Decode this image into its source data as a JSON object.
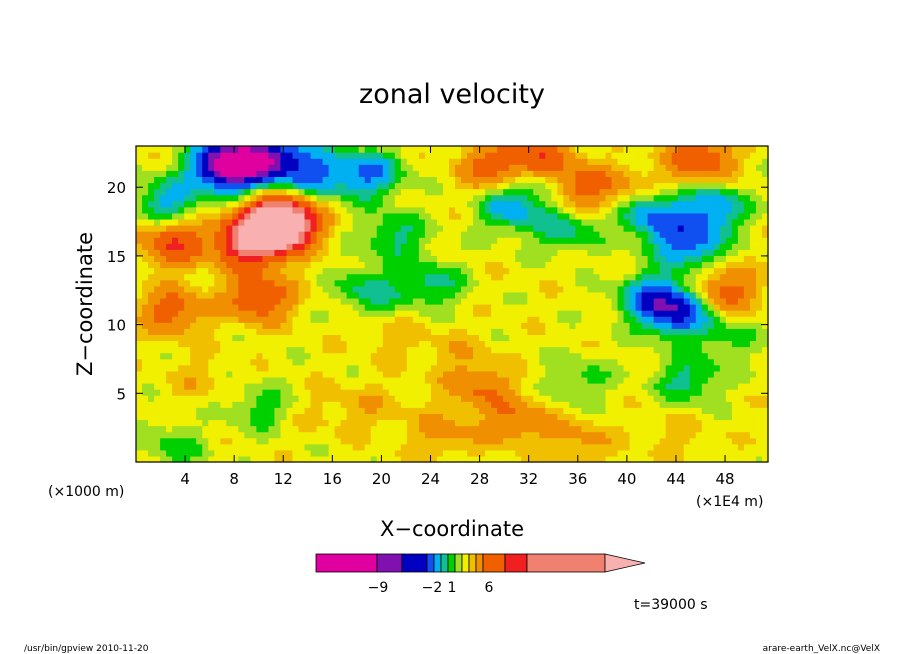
{
  "chart_data": {
    "type": "heatmap",
    "title": "zonal velocity",
    "xlabel": "X−coordinate",
    "ylabel": "Z−coordinate",
    "x_scale_label": "(×1E4 m)",
    "y_scale_label": "(×1000 m)",
    "xlim": [
      0,
      51.5
    ],
    "ylim": [
      0,
      23
    ],
    "x_ticks": [
      4,
      8,
      12,
      16,
      20,
      24,
      28,
      32,
      36,
      40,
      44,
      48
    ],
    "y_ticks": [
      5,
      10,
      15,
      20
    ],
    "colorbar": {
      "colors": [
        "#e000a0",
        "#8010b0",
        "#0000c0",
        "#1050f0",
        "#00b0f0",
        "#10c090",
        "#00d000",
        "#a0e020",
        "#f0f000",
        "#f0c000",
        "#f09000",
        "#f06000",
        "#f02020",
        "#f08070",
        "#f8b0b0"
      ],
      "tick_labels": [
        "−9",
        "−2",
        "1",
        "6"
      ]
    },
    "blobs": [
      {
        "x": 9,
        "y": 16,
        "v": 7
      },
      {
        "x": 11,
        "y": 17,
        "v": 9
      },
      {
        "x": 12,
        "y": 17.5,
        "v": 10
      },
      {
        "x": 3,
        "y": 16,
        "v": 5
      },
      {
        "x": 10,
        "y": 12,
        "v": 5
      },
      {
        "x": 3,
        "y": 11,
        "v": 4
      },
      {
        "x": 7,
        "y": 21.5,
        "v": -9
      },
      {
        "x": 9,
        "y": 22,
        "v": -9
      },
      {
        "x": 12,
        "y": 22,
        "v": -6
      },
      {
        "x": 15,
        "y": 21,
        "v": -4
      },
      {
        "x": 19,
        "y": 21,
        "v": -5
      },
      {
        "x": 2.5,
        "y": 19,
        "v": -4
      },
      {
        "x": 21,
        "y": 16.5,
        "v": -3
      },
      {
        "x": 24,
        "y": 13,
        "v": -3
      },
      {
        "x": 19,
        "y": 12.5,
        "v": -3
      },
      {
        "x": 30.5,
        "y": 18.5,
        "v": -4
      },
      {
        "x": 33,
        "y": 20.5,
        "v": -3
      },
      {
        "x": 35,
        "y": 17,
        "v": -3
      },
      {
        "x": 36,
        "y": 20,
        "v": 4
      },
      {
        "x": 42,
        "y": 18,
        "v": -5
      },
      {
        "x": 45,
        "y": 16,
        "v": -6
      },
      {
        "x": 47,
        "y": 18.5,
        "v": -5
      },
      {
        "x": 42,
        "y": 12,
        "v": -5
      },
      {
        "x": 44,
        "y": 11,
        "v": -7
      },
      {
        "x": 45,
        "y": 6,
        "v": -3
      },
      {
        "x": 36,
        "y": 6,
        "v": -2
      },
      {
        "x": 48,
        "y": 9,
        "v": -2
      },
      {
        "x": 10,
        "y": 4,
        "v": -2
      },
      {
        "x": 3,
        "y": 1,
        "v": -2
      },
      {
        "x": 33,
        "y": 22,
        "v": 5
      },
      {
        "x": 29,
        "y": 21.5,
        "v": 4
      },
      {
        "x": 46,
        "y": 22,
        "v": 5
      },
      {
        "x": 48,
        "y": 12.5,
        "v": 4
      },
      {
        "x": 31,
        "y": 3,
        "v": 3
      },
      {
        "x": 28,
        "y": 5.5,
        "v": 3
      },
      {
        "x": 36,
        "y": 1.5,
        "v": 2
      },
      {
        "x": 25,
        "y": 2,
        "v": 2
      },
      {
        "x": 16,
        "y": 4,
        "v": 1
      },
      {
        "x": 20,
        "y": 4,
        "v": 1
      },
      {
        "x": 21,
        "y": 9,
        "v": 1
      },
      {
        "x": 5,
        "y": 6,
        "v": 1
      },
      {
        "x": 40,
        "y": 20,
        "v": 2
      },
      {
        "x": 26,
        "y": 8,
        "v": 1
      },
      {
        "x": 44,
        "y": 2,
        "v": 1
      }
    ]
  },
  "annotations": {
    "time": "t=39000 s",
    "footer_left": "/usr/bin/gpview   2010-11-20",
    "footer_right": "arare-earth_VelX.nc@VelX"
  },
  "colors": {
    "contour_line": "#000000",
    "background": "#ffffff"
  }
}
